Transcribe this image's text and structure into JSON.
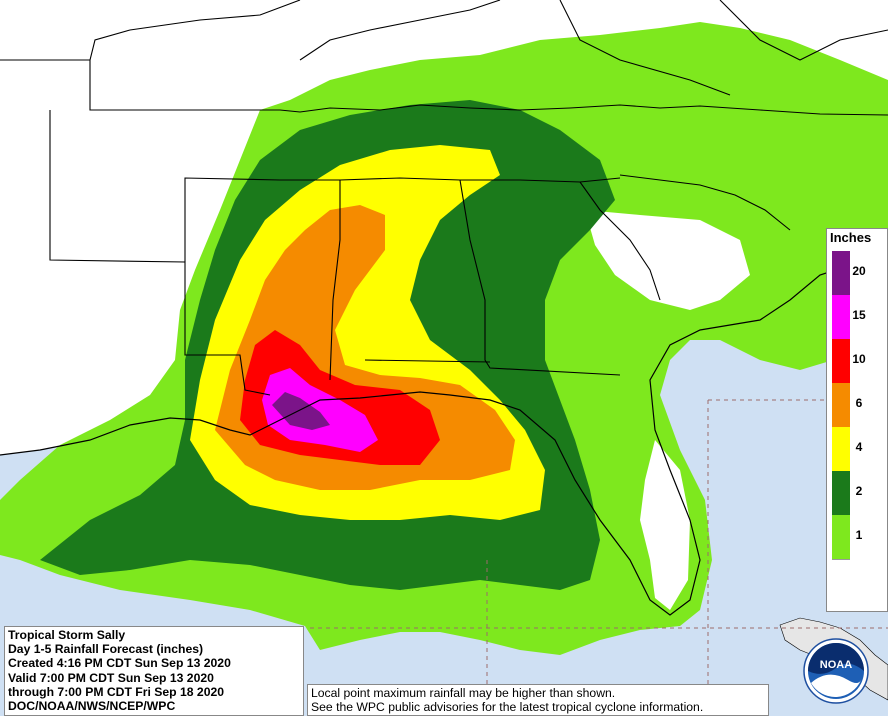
{
  "map": {
    "type": "rainfall-forecast-map",
    "ocean_color": "#cfe0f3",
    "land_color": "#ffffff",
    "border_color": "#000000"
  },
  "info": {
    "line1": "Tropical Storm Sally",
    "line2": "Day 1-5 Rainfall Forecast (inches)",
    "line3": "Created 4:16 PM CDT Sun Sep 13 2020",
    "line4": "Valid 7:00 PM CDT Sun Sep 13 2020",
    "line5": "through 7:00 PM CDT Fri Sep 18 2020",
    "line6": "DOC/NOAA/NWS/NCEP/WPC"
  },
  "note": {
    "line1": "Local point maximum rainfall may be higher than shown.",
    "line2": "See the WPC public advisories for the latest tropical cyclone information."
  },
  "legend": {
    "title": "Inches",
    "levels": [
      {
        "value": "20",
        "color": "#7b1489"
      },
      {
        "value": "15",
        "color": "#ff00ff"
      },
      {
        "value": "10",
        "color": "#ff0000"
      },
      {
        "value": "6",
        "color": "#f58b00"
      },
      {
        "value": "4",
        "color": "#ffff00"
      },
      {
        "value": "2",
        "color": "#1b7a1b"
      },
      {
        "value": "1",
        "color": "#7ee81e"
      }
    ],
    "bottom_color": "#ffffff"
  },
  "logo": {
    "text": "NOAA",
    "icon": "noaa-logo-icon"
  }
}
